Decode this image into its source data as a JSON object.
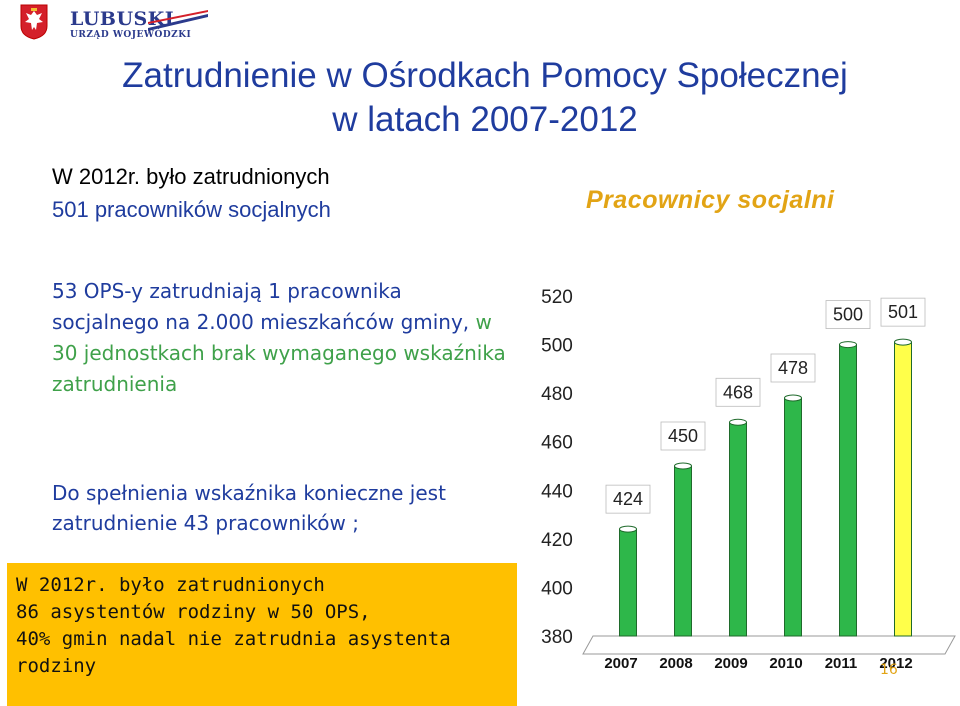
{
  "header": {
    "logo_name": "LUBUSKI",
    "logo_sub": "URZĄD WOJEWÓDZKI",
    "title_line1": "Zatrudnienie w Ośrodkach Pomocy Społecznej",
    "title_line2": "w latach 2007-2012"
  },
  "intro": {
    "line1": "W 2012r. było zatrudnionych",
    "line2": "501 pracowników socjalnych"
  },
  "chart_heading": "Pracownicy  socjalni",
  "paragraph1": {
    "part1": "53 OPS-y zatrudniają 1 pracownika socjalnego na 2.000 mieszkańców gminy,",
    "part2": " w 30 jednostkach brak wymaganego wskaźnika zatrudnienia"
  },
  "paragraph2": "Do spełnienia wskaźnika konieczne jest zatrudnienie 43 pracowników ;",
  "box": {
    "line1": "W 2012r. było zatrudnionych",
    "line2": "86 asystentów rodziny w 50 OPS,",
    "line3": "40% gmin nadal nie zatrudnia asystenta",
    "line4": "rodziny"
  },
  "page_number": "16",
  "colors": {
    "title_blue": "#1f3c9e",
    "accent_green": "#3fa14a",
    "heading_gold": "#e2a415",
    "box_orange": "#ffc000",
    "bar_green": "#2eb74a",
    "bar_yellow": "#ffff4a"
  },
  "chart_data": {
    "type": "bar",
    "title": "Pracownicy  socjalni",
    "categories": [
      "2007",
      "2008",
      "2009",
      "2010",
      "2011",
      "2012"
    ],
    "values": [
      424,
      450,
      468,
      478,
      500,
      501
    ],
    "data_labels": [
      "424",
      "450",
      "468",
      "478",
      "500",
      "501"
    ],
    "bar_colors": [
      "#2eb74a",
      "#2eb74a",
      "#2eb74a",
      "#2eb74a",
      "#2eb74a",
      "#ffff4a"
    ],
    "ylim": [
      380,
      520
    ],
    "yticks": [
      "520",
      "500",
      "480",
      "460",
      "440",
      "420",
      "400",
      "380"
    ],
    "xlabel": "",
    "ylabel": "",
    "grid": false,
    "style": "3d-cylinder"
  }
}
